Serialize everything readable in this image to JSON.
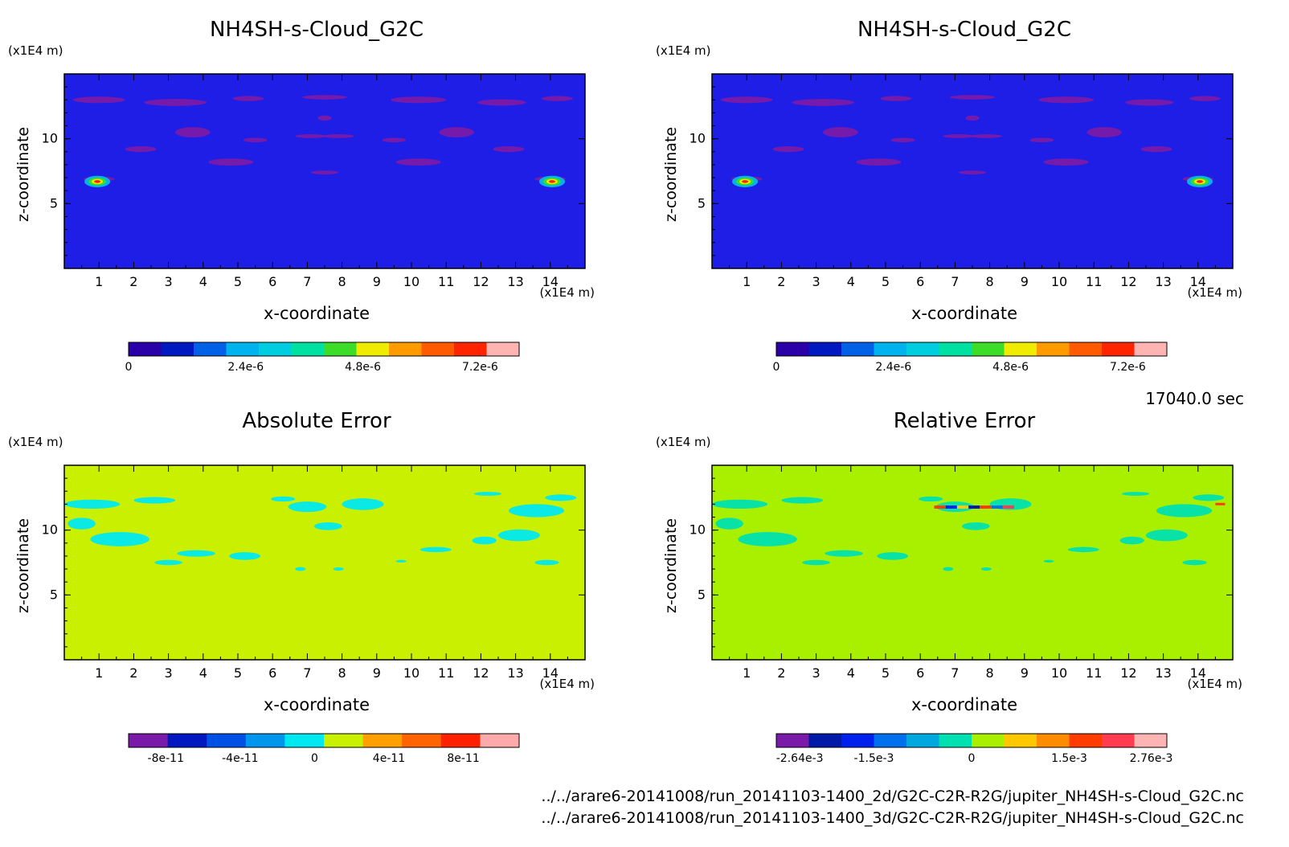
{
  "chart_data": [
    {
      "type": "heatmap",
      "title": "NH4SH-s-Cloud_G2C",
      "xlabel": "x-coordinate",
      "ylabel": "z-coordinate",
      "x_unit": "(x1E4 m)",
      "y_unit": "(x1E4 m)",
      "x_ticks": [
        "1",
        "2",
        "3",
        "4",
        "5",
        "6",
        "7",
        "8",
        "9",
        "10",
        "11",
        "12",
        "13",
        "14"
      ],
      "y_ticks": [
        "5",
        "10"
      ],
      "xlim": [
        0,
        15
      ],
      "ylim": [
        0,
        15
      ],
      "colorbar": {
        "colors": [
          "#2a00a8",
          "#0018c0",
          "#0060e6",
          "#00b2ee",
          "#00cde0",
          "#00e0a0",
          "#3cdc28",
          "#f0ec00",
          "#ff9a00",
          "#ff5a00",
          "#ff2400",
          "#ffb4b4"
        ],
        "labels": [
          "0",
          "2.4e-6",
          "4.8e-6",
          "7.2e-6"
        ],
        "label_values": [
          0,
          2.4e-06,
          4.8e-06,
          7.2e-06
        ],
        "range": [
          0,
          8e-06
        ]
      },
      "background_color": "#1e1ee6",
      "feature_color": "#7a1aa8"
    },
    {
      "type": "heatmap",
      "title": "NH4SH-s-Cloud_G2C",
      "xlabel": "x-coordinate",
      "ylabel": "z-coordinate",
      "x_unit": "(x1E4 m)",
      "y_unit": "(x1E4 m)",
      "x_ticks": [
        "1",
        "2",
        "3",
        "4",
        "5",
        "6",
        "7",
        "8",
        "9",
        "10",
        "11",
        "12",
        "13",
        "14"
      ],
      "y_ticks": [
        "5",
        "10"
      ],
      "xlim": [
        0,
        15
      ],
      "ylim": [
        0,
        15
      ],
      "colorbar": {
        "colors": [
          "#2a00a8",
          "#0018c0",
          "#0060e6",
          "#00b2ee",
          "#00cde0",
          "#00e0a0",
          "#3cdc28",
          "#f0ec00",
          "#ff9a00",
          "#ff5a00",
          "#ff2400",
          "#ffb4b4"
        ],
        "labels": [
          "0",
          "2.4e-6",
          "4.8e-6",
          "7.2e-6"
        ],
        "label_values": [
          0,
          2.4e-06,
          4.8e-06,
          7.2e-06
        ],
        "range": [
          0,
          8e-06
        ]
      },
      "background_color": "#1e1ee6",
      "feature_color": "#7a1aa8"
    },
    {
      "type": "heatmap",
      "title": "Absolute Error",
      "xlabel": "x-coordinate",
      "ylabel": "z-coordinate",
      "x_unit": "(x1E4 m)",
      "y_unit": "(x1E4 m)",
      "x_ticks": [
        "1",
        "2",
        "3",
        "4",
        "5",
        "6",
        "7",
        "8",
        "9",
        "10",
        "11",
        "12",
        "13",
        "14"
      ],
      "y_ticks": [
        "5",
        "10"
      ],
      "xlim": [
        0,
        15
      ],
      "ylim": [
        0,
        15
      ],
      "colorbar": {
        "colors": [
          "#7a1aa8",
          "#0018c0",
          "#0050e6",
          "#0096ee",
          "#00e8f0",
          "#c8f000",
          "#ffa000",
          "#ff6400",
          "#ff2000",
          "#ffaaaa"
        ],
        "labels": [
          "-8e-11",
          "-4e-11",
          "0",
          "4e-11",
          "8e-11"
        ],
        "label_values": [
          -8e-11,
          -4e-11,
          0,
          4e-11,
          8e-11
        ],
        "range": [
          -1e-10,
          1.1e-10
        ]
      },
      "background_color": "#c8f000",
      "feature_color": "#00e8f0"
    },
    {
      "type": "heatmap",
      "title": "Relative Error",
      "xlabel": "x-coordinate",
      "ylabel": "z-coordinate",
      "x_unit": "(x1E4 m)",
      "y_unit": "(x1E4 m)",
      "x_ticks": [
        "1",
        "2",
        "3",
        "4",
        "5",
        "6",
        "7",
        "8",
        "9",
        "10",
        "11",
        "12",
        "13",
        "14"
      ],
      "y_ticks": [
        "5",
        "10"
      ],
      "xlim": [
        0,
        15
      ],
      "ylim": [
        0,
        15
      ],
      "colorbar": {
        "colors": [
          "#7a1aa8",
          "#001aa8",
          "#0020ee",
          "#0070ee",
          "#00a8e0",
          "#00e0b0",
          "#a8f000",
          "#ffc800",
          "#ff8c00",
          "#ff3c00",
          "#ff3c50",
          "#ffb4b4"
        ],
        "labels": [
          "-2.64e-3",
          "-1.5e-3",
          "0",
          "1.5e-3",
          "2.76e-3"
        ],
        "label_values": [
          -0.00264,
          -0.0015,
          0,
          0.0015,
          0.00276
        ],
        "range": [
          -0.003,
          0.003
        ]
      },
      "background_color": "#a8f000",
      "feature_color": "#00e0b0"
    }
  ],
  "time_label": "17040.0 sec",
  "file_paths": [
    "../../arare6-20141008/run_20141103-1400_2d/G2C-C2R-R2G/jupiter_NH4SH-s-Cloud_G2C.nc",
    "../../arare6-20141008/run_20141103-1400_3d/G2C-C2R-R2G/jupiter_NH4SH-s-Cloud_G2C.nc"
  ]
}
